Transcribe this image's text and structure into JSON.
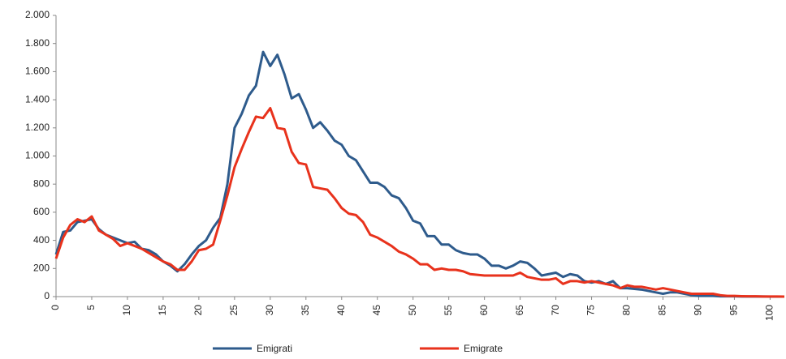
{
  "chart_data": {
    "type": "line",
    "x": [
      0,
      1,
      2,
      3,
      4,
      5,
      6,
      7,
      8,
      9,
      10,
      11,
      12,
      13,
      14,
      15,
      16,
      17,
      18,
      19,
      20,
      21,
      22,
      23,
      24,
      25,
      26,
      27,
      28,
      29,
      30,
      31,
      32,
      33,
      34,
      35,
      36,
      37,
      38,
      39,
      40,
      41,
      42,
      43,
      44,
      45,
      46,
      47,
      48,
      49,
      50,
      51,
      52,
      53,
      54,
      55,
      56,
      57,
      58,
      59,
      60,
      61,
      62,
      63,
      64,
      65,
      66,
      67,
      68,
      69,
      70,
      71,
      72,
      73,
      74,
      75,
      76,
      77,
      78,
      79,
      80,
      81,
      82,
      83,
      84,
      85,
      86,
      87,
      88,
      89,
      90,
      91,
      92,
      93,
      94,
      95,
      96,
      97,
      98,
      99,
      100,
      101,
      102
    ],
    "series": [
      {
        "name": "Emigrati",
        "color": "#2e5b8c",
        "values": [
          300,
          460,
          470,
          530,
          540,
          550,
          480,
          440,
          420,
          400,
          380,
          390,
          340,
          330,
          300,
          250,
          220,
          180,
          230,
          300,
          360,
          400,
          490,
          560,
          800,
          1200,
          1300,
          1430,
          1500,
          1740,
          1640,
          1720,
          1580,
          1410,
          1440,
          1330,
          1200,
          1240,
          1180,
          1110,
          1080,
          1000,
          970,
          890,
          810,
          810,
          780,
          720,
          700,
          630,
          540,
          520,
          430,
          430,
          370,
          370,
          330,
          310,
          300,
          300,
          270,
          220,
          220,
          200,
          220,
          250,
          240,
          200,
          150,
          160,
          170,
          140,
          160,
          150,
          110,
          100,
          110,
          90,
          110,
          60,
          60,
          55,
          50,
          40,
          30,
          20,
          30,
          30,
          20,
          10,
          5,
          5,
          5,
          2,
          2,
          2,
          1,
          1,
          1,
          1,
          0,
          0,
          0
        ]
      },
      {
        "name": "Emigrate",
        "color": "#e8321c",
        "values": [
          270,
          420,
          510,
          550,
          530,
          570,
          470,
          440,
          410,
          360,
          380,
          360,
          340,
          310,
          280,
          250,
          230,
          190,
          190,
          250,
          330,
          340,
          370,
          540,
          720,
          920,
          1050,
          1170,
          1280,
          1270,
          1340,
          1200,
          1190,
          1030,
          950,
          940,
          780,
          770,
          760,
          700,
          630,
          590,
          580,
          530,
          440,
          420,
          390,
          360,
          320,
          300,
          270,
          230,
          230,
          190,
          200,
          190,
          190,
          180,
          160,
          155,
          150,
          150,
          150,
          150,
          150,
          170,
          140,
          130,
          120,
          120,
          130,
          90,
          110,
          110,
          100,
          110,
          100,
          90,
          80,
          60,
          80,
          70,
          70,
          60,
          50,
          60,
          50,
          40,
          30,
          20,
          20,
          20,
          20,
          10,
          5,
          5,
          3,
          2,
          2,
          1,
          1,
          1,
          0
        ]
      }
    ],
    "xlim": [
      0,
      102
    ],
    "xticks": [
      0,
      5,
      10,
      15,
      20,
      25,
      30,
      35,
      40,
      45,
      50,
      55,
      60,
      65,
      70,
      75,
      80,
      85,
      90,
      95,
      100
    ],
    "ylim": [
      0,
      2000
    ],
    "yticks": [
      0,
      200,
      400,
      600,
      800,
      {
        "value": 1000,
        "label": "1.000"
      },
      {
        "value": 1200,
        "label": "1.200"
      },
      {
        "value": 1400,
        "label": "1.400"
      },
      {
        "value": 1600,
        "label": "1.600"
      },
      {
        "value": 1800,
        "label": "1.800"
      },
      {
        "value": 2000,
        "label": "2.000"
      }
    ],
    "grid": false
  }
}
